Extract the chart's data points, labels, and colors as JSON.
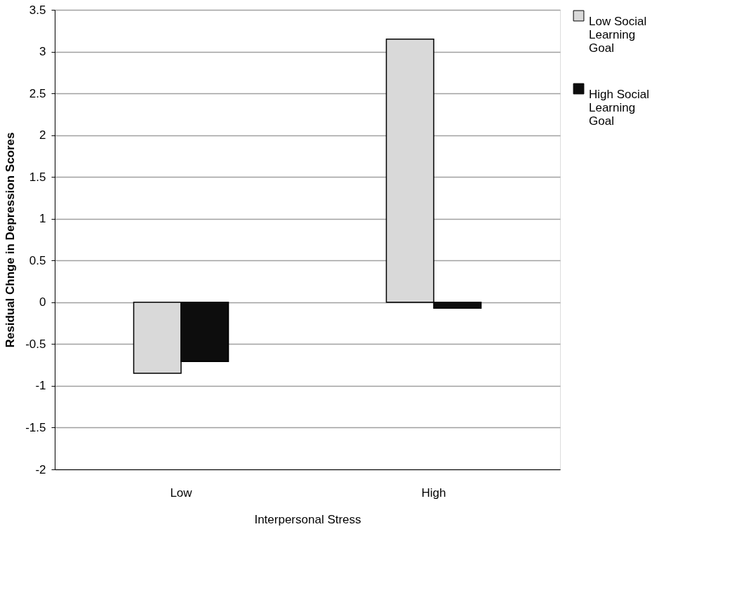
{
  "chart_data": {
    "type": "bar",
    "xlabel": "Interpersonal  Stress",
    "ylabel": "Residual Chnge in Depression Scores",
    "categories": [
      "Low",
      "High"
    ],
    "series": [
      {
        "name": "Low Social Learning Goal",
        "color": "#d9d9d9",
        "values": [
          -0.85,
          3.15
        ]
      },
      {
        "name": "High Social Learning Goal",
        "color": "#0d0d0d",
        "values": [
          -0.71,
          -0.07
        ]
      }
    ],
    "ylim": [
      -2,
      3.5
    ],
    "yticks": [
      -2,
      -1.5,
      -1,
      -0.5,
      0,
      0.5,
      1,
      1.5,
      2,
      2.5,
      3,
      3.5
    ],
    "grid": "y",
    "legend": "right"
  }
}
